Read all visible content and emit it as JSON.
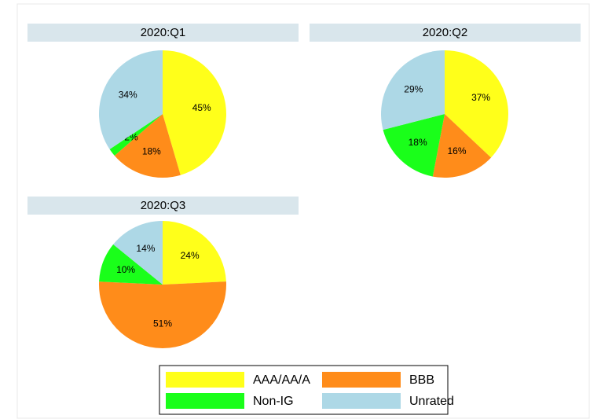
{
  "chart_data": [
    {
      "type": "pie",
      "title": "2020:Q1",
      "categories": [
        "AAA/AA/A",
        "BBB",
        "Non-IG",
        "Unrated"
      ],
      "values": [
        45,
        18,
        2,
        34
      ],
      "value_labels": [
        "45%",
        "18%",
        "2%",
        "34%"
      ],
      "colors": [
        "#ffff1a",
        "#ff8c1a",
        "#1aff1a",
        "#add8e6"
      ]
    },
    {
      "type": "pie",
      "title": "2020:Q2",
      "categories": [
        "AAA/AA/A",
        "BBB",
        "Non-IG",
        "Unrated"
      ],
      "values": [
        37,
        16,
        18,
        29
      ],
      "value_labels": [
        "37%",
        "16%",
        "18%",
        "29%"
      ],
      "colors": [
        "#ffff1a",
        "#ff8c1a",
        "#1aff1a",
        "#add8e6"
      ]
    },
    {
      "type": "pie",
      "title": "2020:Q3",
      "categories": [
        "AAA/AA/A",
        "BBB",
        "Non-IG",
        "Unrated"
      ],
      "values": [
        24,
        51,
        10,
        14
      ],
      "value_labels": [
        "24%",
        "51%",
        "10%",
        "14%"
      ],
      "colors": [
        "#ffff1a",
        "#ff8c1a",
        "#1aff1a",
        "#add8e6"
      ]
    }
  ]
}
